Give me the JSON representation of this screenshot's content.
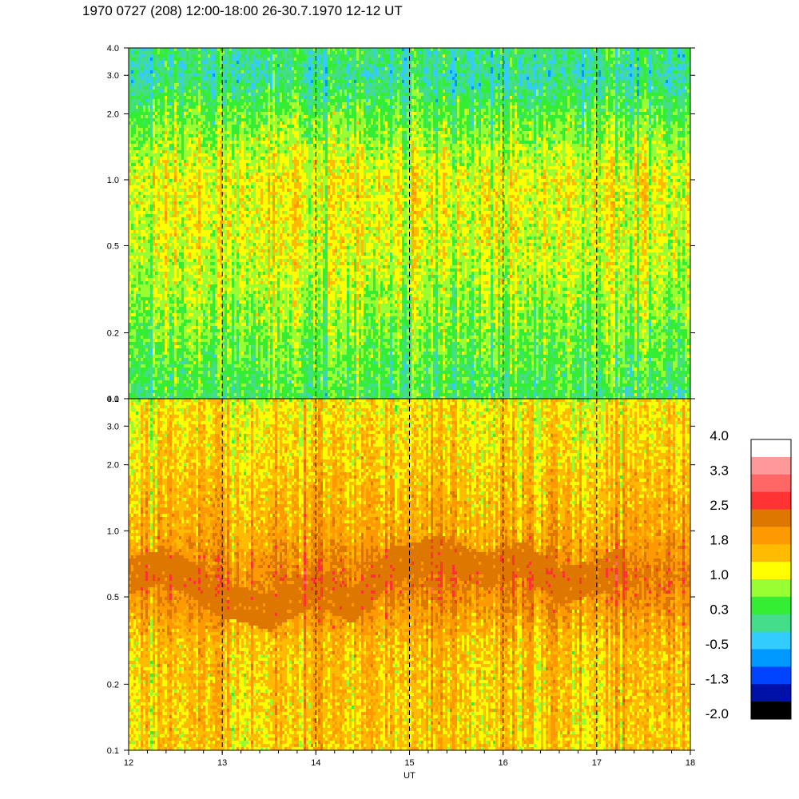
{
  "title": "1970 0727 (208) 12:00-18:00 26-30.7.1970  12-12 UT",
  "chart_data": [
    {
      "type": "heatmap",
      "panel": "top",
      "x_range": [
        12,
        18
      ],
      "y_range": [
        0.1,
        4.0
      ],
      "y_scale": "log",
      "y_ticks": [
        0.1,
        0.2,
        0.5,
        1.0,
        2.0,
        3.0,
        4.0
      ],
      "y_tick_labels": [
        "0.1",
        "0.2",
        "0.5",
        "1.0",
        "2.0",
        "3.0",
        "4.0"
      ],
      "dashed_verticals": [
        13,
        14,
        15,
        16,
        17
      ],
      "value_profile": [
        {
          "y": 0.1,
          "level": 0.4
        },
        {
          "y": 0.2,
          "level": 0.7
        },
        {
          "y": 0.5,
          "level": 1.1
        },
        {
          "y": 1.0,
          "level": 1.2
        },
        {
          "y": 2.0,
          "level": 0.6
        },
        {
          "y": 3.0,
          "level": 0.1
        },
        {
          "y": 4.0,
          "level": 0.3
        }
      ]
    },
    {
      "type": "heatmap",
      "panel": "bottom",
      "x_range": [
        12,
        18
      ],
      "y_range": [
        0.1,
        4.0
      ],
      "y_scale": "log",
      "y_ticks": [
        0.1,
        0.2,
        0.5,
        1.0,
        2.0,
        3.0,
        4.0
      ],
      "y_tick_labels": [
        "0.1",
        "0.2",
        "0.5",
        "1.0",
        "2.0",
        "3.0",
        "4.0"
      ],
      "dashed_verticals": [
        13,
        14,
        15,
        16,
        17
      ],
      "value_profile": [
        {
          "y": 0.1,
          "level": 1.5
        },
        {
          "y": 0.3,
          "level": 1.6
        },
        {
          "y": 0.6,
          "level": 2.3
        },
        {
          "y": 1.0,
          "level": 1.8
        },
        {
          "y": 2.0,
          "level": 1.5
        },
        {
          "y": 4.0,
          "level": 1.3
        }
      ],
      "dark_band": [
        {
          "x": 12.0,
          "y": 0.62
        },
        {
          "x": 12.4,
          "y": 0.7
        },
        {
          "x": 12.9,
          "y": 0.5
        },
        {
          "x": 13.5,
          "y": 0.42
        },
        {
          "x": 14.0,
          "y": 0.55
        },
        {
          "x": 14.4,
          "y": 0.45
        },
        {
          "x": 14.8,
          "y": 0.7
        },
        {
          "x": 15.3,
          "y": 0.78
        },
        {
          "x": 15.8,
          "y": 0.65
        },
        {
          "x": 16.2,
          "y": 0.75
        },
        {
          "x": 16.6,
          "y": 0.55
        },
        {
          "x": 17.0,
          "y": 0.62
        },
        {
          "x": 17.3,
          "y": 0.7
        }
      ],
      "shared_x_ticks": [
        12,
        13,
        14,
        15,
        16,
        17,
        18
      ],
      "x_tick_labels": [
        "12",
        "13",
        "14",
        "15",
        "16",
        "17",
        "18"
      ],
      "xlabel": "UT"
    }
  ],
  "colorbar": {
    "labels": [
      "4.0",
      "3.3",
      "2.5",
      "1.8",
      "1.0",
      "0.3",
      "-0.5",
      "-1.3",
      "-2.0"
    ],
    "colors": [
      "#ffffff",
      "#ff9999",
      "#ff6666",
      "#ff3333",
      "#dd7700",
      "#ff9900",
      "#ffbb00",
      "#ffff00",
      "#99ff33",
      "#33ee33",
      "#44dd88",
      "#33ccff",
      "#0099ff",
      "#0044ff",
      "#0011aa",
      "#000000"
    ]
  }
}
